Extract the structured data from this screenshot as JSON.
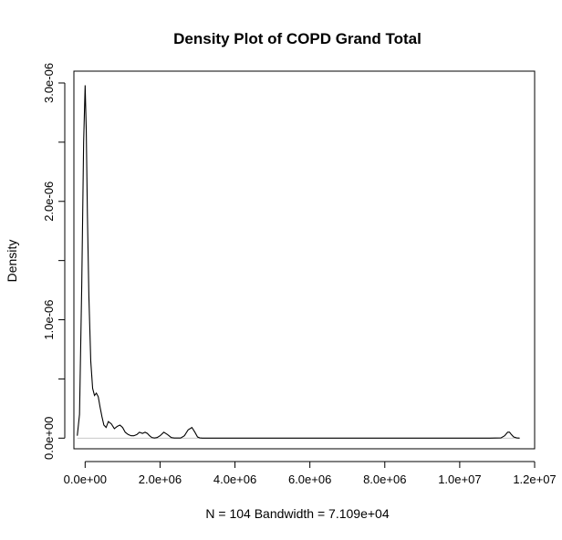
{
  "chart_data": {
    "type": "line",
    "title": "Density Plot of COPD Grand Total",
    "xlabel": "N = 104   Bandwidth = 7.109e+04",
    "ylabel": "Density",
    "xlim": [
      -300000,
      12000000
    ],
    "ylim": [
      -9e-08,
      3.1e-06
    ],
    "x_ticks": [
      0,
      2000000,
      4000000,
      6000000,
      8000000,
      10000000,
      12000000
    ],
    "x_tick_labels": [
      "0.0e+00",
      "2.0e+06",
      "4.0e+06",
      "6.0e+06",
      "8.0e+06",
      "1.0e+07",
      "1.2e+07"
    ],
    "y_ticks": [
      0,
      5e-07,
      1e-06,
      1.5e-06,
      2e-06,
      2.5e-06,
      3e-06
    ],
    "y_tick_labels": [
      "0.0e+00",
      "",
      "1.0e-06",
      "",
      "2.0e-06",
      "",
      "3.0e-06"
    ],
    "grid": false,
    "series": [
      {
        "x": [
          -210000,
          -150000,
          -90000,
          -40000,
          0,
          30000,
          60000,
          100000,
          150000,
          200000,
          250000,
          300000,
          350000,
          400000,
          450000,
          500000,
          560000,
          620000,
          700000,
          780000,
          860000,
          930000,
          1000000,
          1070000,
          1150000,
          1230000,
          1300000,
          1380000,
          1450000,
          1530000,
          1600000,
          1660000,
          1720000,
          1780000,
          1850000,
          1920000,
          2000000,
          2100000,
          2200000,
          2300000,
          2380000,
          2460000,
          2550000,
          2650000,
          2750000,
          2850000,
          2930000,
          3000000,
          3060000,
          3130000,
          3200000,
          3300000,
          3500000,
          4000000,
          5000000,
          6000000,
          7000000,
          8000000,
          9000000,
          10000000,
          10800000,
          11100000,
          11200000,
          11280000,
          11330000,
          11380000,
          11440000,
          11520000,
          11600000
        ],
        "y": [
          2e-08,
          2e-07,
          1.3e-06,
          2.5e-06,
          2.98e-06,
          2.6e-06,
          1.9e-06,
          1.2e-06,
          6.5e-07,
          4.2e-07,
          3.6e-07,
          3.8e-07,
          3.5e-07,
          2.6e-07,
          1.8e-07,
          1.1e-07,
          9e-08,
          1.4e-07,
          1.2e-07,
          8e-08,
          1e-07,
          1.1e-07,
          9e-08,
          5e-08,
          3e-08,
          2e-08,
          2e-08,
          3e-08,
          5e-08,
          4e-08,
          5e-08,
          4e-08,
          2e-08,
          5e-09,
          1e-09,
          5e-09,
          2e-08,
          5e-08,
          3e-08,
          5e-09,
          1e-09,
          1e-09,
          1e-09,
          2e-08,
          7e-08,
          9e-08,
          5e-08,
          1e-08,
          2e-09,
          0,
          0,
          0,
          0,
          0,
          0,
          0,
          0,
          0,
          0,
          0,
          0,
          2e-09,
          2e-08,
          5e-08,
          5e-08,
          3e-08,
          1e-08,
          2e-09,
          0
        ]
      }
    ]
  }
}
